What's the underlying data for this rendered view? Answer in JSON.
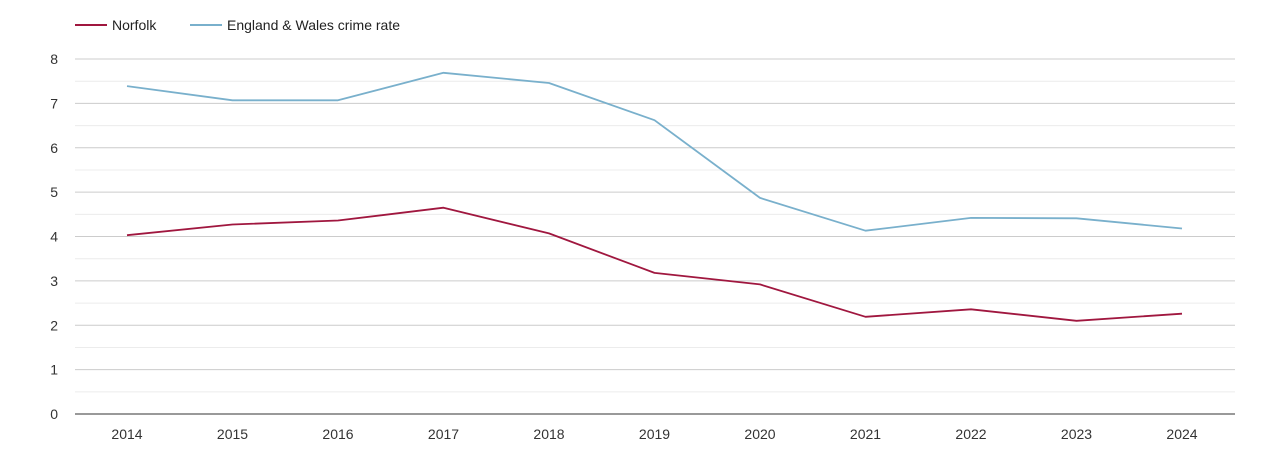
{
  "chart_data": {
    "type": "line",
    "title": "",
    "xlabel": "",
    "ylabel": "",
    "x": [
      "2014",
      "2015",
      "2016",
      "2017",
      "2018",
      "2019",
      "2020",
      "2021",
      "2022",
      "2023",
      "2024"
    ],
    "ylim": [
      0,
      8
    ],
    "yticks": [
      "0",
      "1",
      "2",
      "3",
      "4",
      "5",
      "6",
      "7",
      "8"
    ],
    "grid": true,
    "legend_position": "top-left",
    "series": [
      {
        "name": "Norfolk",
        "color": "#a0173f",
        "values": [
          4.03,
          4.27,
          4.36,
          4.65,
          4.07,
          3.18,
          2.92,
          2.19,
          2.36,
          2.1,
          2.26
        ]
      },
      {
        "name": "England & Wales crime rate",
        "color": "#79b0cc",
        "values": [
          7.39,
          7.07,
          7.07,
          7.69,
          7.46,
          6.62,
          4.87,
          4.13,
          4.42,
          4.41,
          4.18
        ]
      }
    ]
  }
}
